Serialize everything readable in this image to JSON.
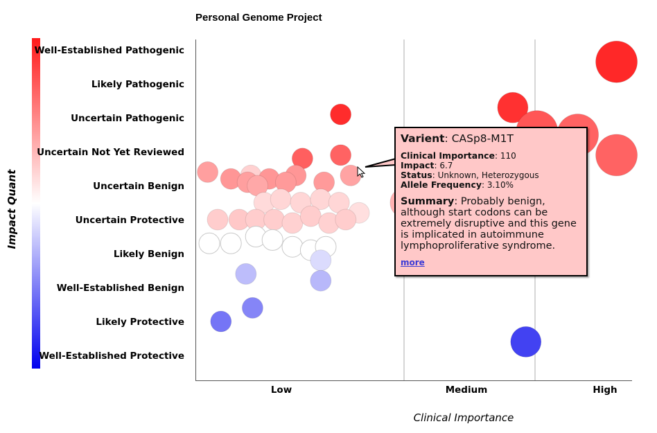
{
  "colors": {
    "pathogenic": "#ff1a1a",
    "neutral": "#ffffff",
    "protective": "#0000ee",
    "tooltip_bg": "#ffc8c8"
  },
  "chart_data": {
    "type": "scatter",
    "title": "Personal Genome Project",
    "xlabel": "Clinical Importance",
    "ylabel": "Impact Quant",
    "x_categories": [
      "Low",
      "Medium",
      "High"
    ],
    "y_levels": [
      "Well-Established Pathogenic",
      "Likely Pathogenic",
      "Uncertain Pathogenic",
      "Uncertain Not Yet Reviewed",
      "Uncertain Benign",
      "Uncertain Protective",
      "Likely Benign",
      "Well-Established Benign",
      "Likely Protective",
      "Well-Established Protective"
    ],
    "colorbar": "red-white-blue",
    "grid_x": true,
    "points": [
      {
        "x": 0.3,
        "y": 3.7,
        "impact": 6.0
      },
      {
        "x": 0.61,
        "y": 3.2,
        "impact": 8.5
      },
      {
        "x": 0.84,
        "y": 1.9,
        "impact": 9.6
      },
      {
        "x": 0.84,
        "y": 3.1,
        "impact": 8.4
      },
      {
        "x": 0.04,
        "y": 3.6,
        "impact": 7.1
      },
      {
        "x": 0.18,
        "y": 3.8,
        "impact": 7.3
      },
      {
        "x": 0.41,
        "y": 3.8,
        "impact": 7.3
      },
      {
        "x": 0.28,
        "y": 3.9,
        "impact": 7.1
      },
      {
        "x": 0.57,
        "y": 3.7,
        "impact": 7.3
      },
      {
        "x": 0.51,
        "y": 3.9,
        "impact": 7.2
      },
      {
        "x": 0.74,
        "y": 3.9,
        "impact": 7.2
      },
      {
        "x": 0.9,
        "y": 3.7,
        "impact": 7.0
      },
      {
        "x": 0.34,
        "y": 4.0,
        "impact": 6.9
      },
      {
        "x": 0.38,
        "y": 4.5,
        "impact": 5.8
      },
      {
        "x": 0.48,
        "y": 4.4,
        "impact": 5.9
      },
      {
        "x": 0.6,
        "y": 4.5,
        "impact": 5.9
      },
      {
        "x": 0.72,
        "y": 4.4,
        "impact": 5.9
      },
      {
        "x": 0.83,
        "y": 4.5,
        "impact": 5.9
      },
      {
        "x": 0.95,
        "y": 4.8,
        "impact": 5.7
      },
      {
        "x": 1.01,
        "y": 4.5,
        "impact": 6.7
      },
      {
        "x": 0.1,
        "y": 5.0,
        "impact": 6.1
      },
      {
        "x": 0.23,
        "y": 5.0,
        "impact": 6.2
      },
      {
        "x": 0.33,
        "y": 5.0,
        "impact": 6.1
      },
      {
        "x": 0.44,
        "y": 5.0,
        "impact": 6.1
      },
      {
        "x": 0.55,
        "y": 5.1,
        "impact": 6.0
      },
      {
        "x": 0.66,
        "y": 4.9,
        "impact": 6.1
      },
      {
        "x": 0.77,
        "y": 5.1,
        "impact": 6.0
      },
      {
        "x": 0.87,
        "y": 5.0,
        "impact": 6.1
      },
      {
        "x": 0.05,
        "y": 5.7,
        "impact": 5.0
      },
      {
        "x": 0.18,
        "y": 5.7,
        "impact": 5.0
      },
      {
        "x": 0.33,
        "y": 5.5,
        "impact": 5.0
      },
      {
        "x": 0.43,
        "y": 5.6,
        "impact": 5.0
      },
      {
        "x": 0.55,
        "y": 5.8,
        "impact": 5.0
      },
      {
        "x": 0.66,
        "y": 5.9,
        "impact": 5.0
      },
      {
        "x": 0.75,
        "y": 5.8,
        "impact": 5.0
      },
      {
        "x": 0.72,
        "y": 6.2,
        "impact": 4.3
      },
      {
        "x": 0.27,
        "y": 6.6,
        "impact": 3.7
      },
      {
        "x": 0.72,
        "y": 6.8,
        "impact": 3.6
      },
      {
        "x": 0.31,
        "y": 7.6,
        "impact": 2.6
      },
      {
        "x": 0.12,
        "y": 8.0,
        "impact": 2.3
      },
      {
        "x": 1.93,
        "y": 8.6,
        "impact": 1.3
      },
      {
        "x": 1.83,
        "y": 1.7,
        "impact": 9.5
      },
      {
        "x": 2.02,
        "y": 2.4,
        "impact": 8.7
      },
      {
        "x": 2.44,
        "y": 2.5,
        "impact": 8.4
      },
      {
        "x": 2.84,
        "y": 0.35,
        "impact": 9.7
      },
      {
        "x": 2.84,
        "y": 3.1,
        "impact": 8.4
      }
    ]
  },
  "tooltip": {
    "title_label": "Varient",
    "title_value": "CASp8-M1T",
    "clinical_label": "Clinical Importance",
    "clinical_value": "110",
    "impact_label": "Impact",
    "impact_value": "6.7",
    "status_label": "Status",
    "status_value": "Unknown, Heterozygous",
    "freq_label": "Allele Frequency",
    "freq_value": "3.10%",
    "summary_label": "Summary",
    "summary_value": "Probably benign, although start codons can be extremely disruptive and this gene is implicated in autoimmune lymphoproliferative syndrome.",
    "more_label": "more"
  }
}
